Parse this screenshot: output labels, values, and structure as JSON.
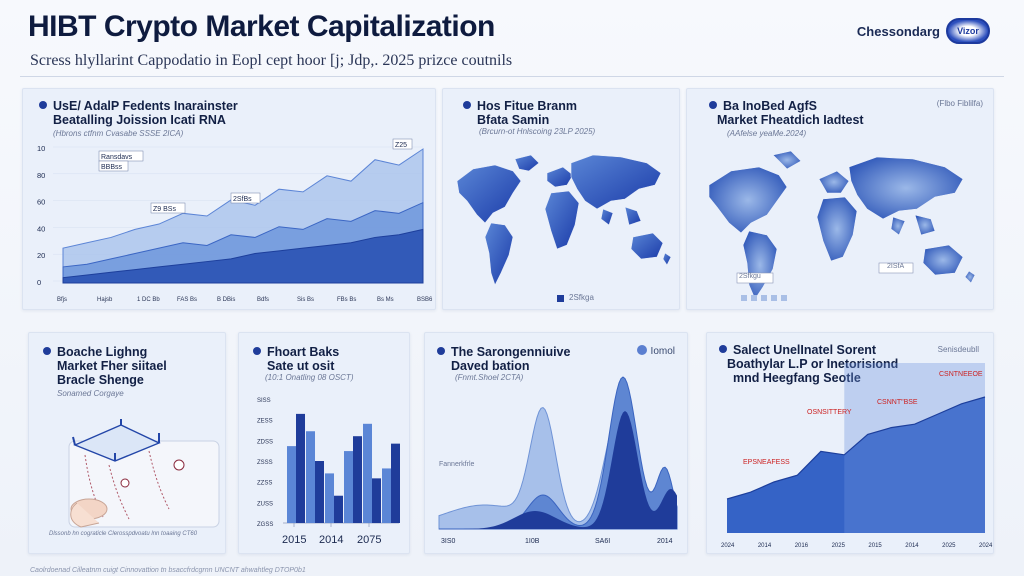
{
  "header": {
    "title": "HIBT Crypto Market Capitalization",
    "subtitle": "Scress hlyllarint Cappodatio in Eopl cept hoor [j; Jdp,. 2025 prizce coutnils",
    "brand_text": "Chessondarg",
    "brand_logo_text": "Vizor"
  },
  "panels": {
    "p1": {
      "title_line1": "UsE/ AdalP Fedents Inarainster",
      "title_line2": "Beatalling Joission Icati RNA",
      "note": "(Hbrons ctfnm Cvasabe SSSE 2ICA)"
    },
    "p2": {
      "title_line1": "Hos Fitue Branm",
      "title_line2": "Bfata Samin",
      "note": "(Brcurn-ot Hnlscoing 23LP 2025)",
      "legend": "2Sfkga"
    },
    "p3": {
      "title_line1": "Ba InoBed AgfS",
      "title_line2": "Market Fheatdich Iadtest",
      "note": "(AAfelse yeaMe.2024)",
      "corner": "(Flbo Fiblilfa)",
      "tag": "2Sfkgu",
      "map_label": "2ISfA"
    },
    "p4": {
      "title_line1": "Boache Lighng",
      "title_line2": "Market Fher siitael",
      "title_line3": "Bracle Shenge",
      "note": "Sonamed Corgaye",
      "caption": "Dlssonb hn cograticle Clerosspdvoatu lnn toaaing CT60"
    },
    "p5": {
      "title_line1": "Fhoart Baks",
      "title_line2": "Sate ut osit",
      "note": "(10:1 Onatling 08 OSCT)"
    },
    "p6": {
      "title_line1": "The Sarongenniuive",
      "title_line2": "Daved bation",
      "note": "(Fnmt.Shoel 2CTA)",
      "corner": "Iomol",
      "tag": "Fannerkfrle"
    },
    "p7": {
      "title_line1": "Salect UnelInatel Sorent",
      "title_line2": "Boathylar L.P or Inetorisiond",
      "title_line3": "mnd Heegfang Seotle",
      "corner": "Senisdeubll",
      "ann1": "CSNTNEEOE",
      "ann2": "CSNNT\"BSE",
      "ann3": "OSNSITTERY",
      "ann4": "EPSNEAFESS"
    }
  },
  "footer": "Caolrdoenad Cilleatnm cuigt Cinnovattion tn bsaccfrdcgrnn UNCNT ahwahtleg DTOP0b1"
}
